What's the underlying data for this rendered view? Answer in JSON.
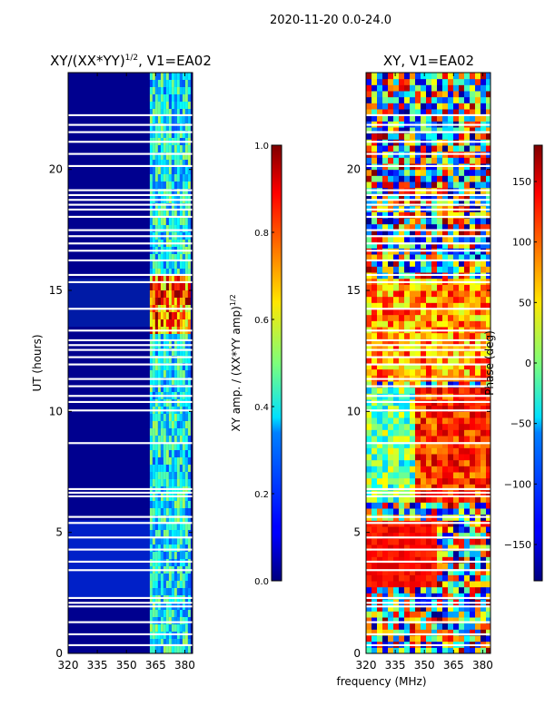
{
  "suptitle": "2020-11-20 0.0-24.0",
  "chart_data": [
    {
      "type": "heatmap",
      "title": "XY/(XX*YY)",
      "title_sup": "1/2",
      "title_suffix": ", V1=EA02",
      "xlabel": "",
      "ylabel": "UT (hours)",
      "xlim": [
        320,
        384
      ],
      "ylim": [
        0,
        24
      ],
      "x_ticks": [
        320,
        335,
        350,
        365,
        380
      ],
      "y_ticks": [
        0,
        5,
        10,
        15,
        20
      ],
      "colorbar": {
        "label": "XY amp. / (XX*YY amp)",
        "label_sup": "1/2",
        "range": [
          0.0,
          1.0
        ],
        "ticks": [
          "0.0",
          "0.2",
          "0.4",
          "0.6",
          "0.8",
          "1.0"
        ],
        "colormap": "jet"
      }
    },
    {
      "type": "heatmap",
      "title": "XY, V1=EA02",
      "xlabel": "frequency (MHz)",
      "ylabel": "",
      "xlim": [
        320,
        384
      ],
      "ylim": [
        0,
        24
      ],
      "x_ticks": [
        320,
        335,
        350,
        365,
        380
      ],
      "y_ticks": [
        0,
        5,
        10,
        15,
        20
      ],
      "colorbar": {
        "label": "Phase (deg)",
        "range": [
          -180,
          180
        ],
        "ticks": [
          "150",
          "100",
          "50",
          "0",
          "−50",
          "−100",
          "−150"
        ],
        "tick_values": [
          150,
          100,
          50,
          0,
          -50,
          -100,
          -150
        ],
        "colormap": "jet"
      }
    }
  ],
  "gaps_hours": [
    0.3,
    0.75,
    1.25,
    1.9,
    2.05,
    2.25,
    3.4,
    3.75,
    4.25,
    4.75,
    5.35,
    5.6,
    6.45,
    6.6,
    6.75,
    8.65,
    10.0,
    10.35,
    10.6,
    11.0,
    11.3,
    11.9,
    12.2,
    12.5,
    12.7,
    12.9,
    13.3,
    14.2,
    15.3,
    15.6,
    16.2,
    16.6,
    16.9,
    17.2,
    17.45,
    18.0,
    18.3,
    18.5,
    18.7,
    18.9,
    19.1,
    20.1,
    20.6,
    21.1,
    21.5,
    21.8,
    22.2
  ]
}
